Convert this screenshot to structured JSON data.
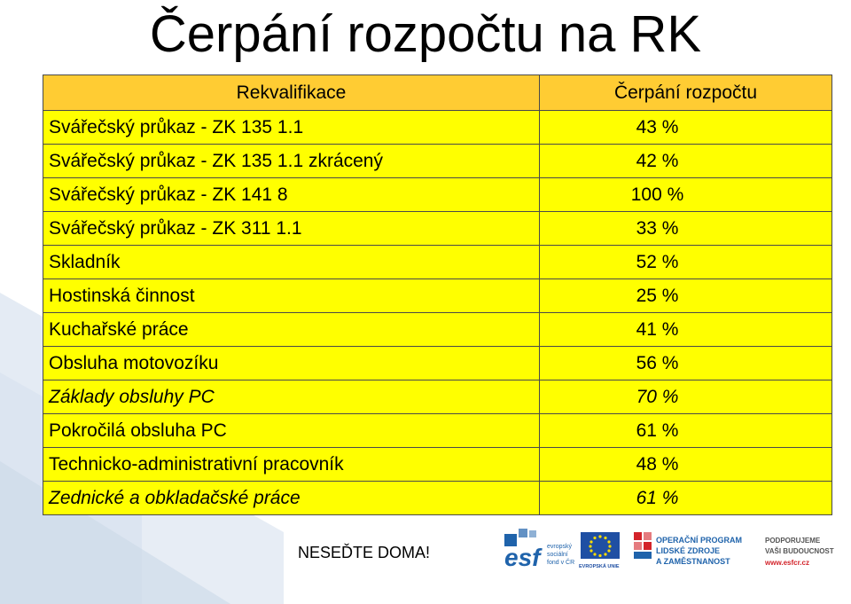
{
  "title": "Čerpání rozpočtu na RK",
  "table": {
    "headers": [
      "Rekvalifikace",
      "Čerpání rozpočtu"
    ],
    "rows": [
      {
        "name": "Svářečský průkaz - ZK 135 1.1",
        "value": "43 %"
      },
      {
        "name": "Svářečský průkaz - ZK 135 1.1 zkrácený",
        "value": "42 %"
      },
      {
        "name": "Svářečský průkaz - ZK 141 8",
        "value": "100 %"
      },
      {
        "name": "Svářečský průkaz - ZK 311 1.1",
        "value": "33 %"
      },
      {
        "name": "Skladník",
        "value": "52 %"
      },
      {
        "name": "Hostinská činnost",
        "value": "25 %"
      },
      {
        "name": "Kuchařské práce",
        "value": "41 %"
      },
      {
        "name": "Obsluha motovozíku",
        "value": "56 %"
      },
      {
        "name": "Základy obsluhy PC",
        "value": "70 %"
      },
      {
        "name": "Pokročilá obsluha PC",
        "value": "61 %"
      },
      {
        "name": "Technicko-administrativní pracovník",
        "value": "48 %"
      },
      {
        "name": "Zednické a obkladačské práce",
        "value": "61 %"
      }
    ]
  },
  "footer": {
    "slogan": "NESEĎTE DOMA!",
    "logo_esf_word": "esf",
    "logo_esf_text": [
      "evropský",
      "sociální",
      "fond v ČR"
    ],
    "logo_eu_text": "EVROPSKÁ UNIE",
    "logo_op_text": [
      "OPERAČNÍ PROGRAM",
      "LIDSKÉ ZDROJE",
      "A ZAMĚSTNANOST"
    ],
    "logo_support_text": [
      "PODPORUJEME",
      "VAŠI BUDOUCNOST"
    ],
    "logo_support_url": "www.esfcr.cz"
  },
  "colors": {
    "header_fill": "#ffcc33",
    "row_fill": "#ffff00",
    "stripe": "#dde6f1",
    "esf_blue": "#1f63ab",
    "op_red": "#d3232a",
    "eu_blue": "#1f4fa3"
  }
}
